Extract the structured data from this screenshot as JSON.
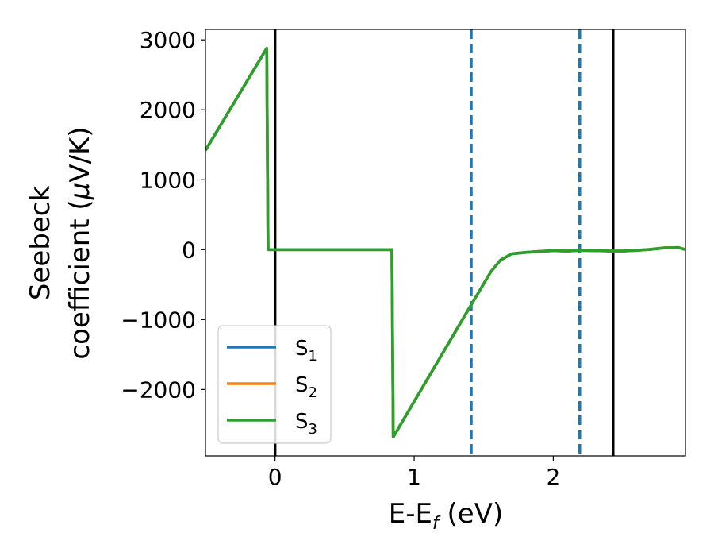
{
  "chart_data": {
    "type": "line",
    "xlabel": "E-E",
    "xlabel_sub": "f",
    "xlabel_unit": " (eV)",
    "ylabel_line1": "Seebeck",
    "ylabel_line2_text": "coefficient  (",
    "ylabel_mu": "μ",
    "ylabel_unit": "V/K)",
    "xlim": [
      -0.5,
      2.95
    ],
    "ylim": [
      -2950,
      3150
    ],
    "xticks": [
      0,
      1,
      2
    ],
    "xtick_labels": [
      "0",
      "1",
      "2"
    ],
    "yticks": [
      -2000,
      -1000,
      0,
      1000,
      2000,
      3000
    ],
    "ytick_labels": [
      "−2000",
      "−1000",
      "0",
      "1000",
      "2000",
      "3000"
    ],
    "grid": false,
    "legend_position": "lower-left",
    "vertical_lines": [
      {
        "x": 0.0,
        "style": "solid",
        "color": "#000000"
      },
      {
        "x": 2.43,
        "style": "solid",
        "color": "#000000"
      },
      {
        "x": 1.41,
        "style": "dashed",
        "color": "#1f77b4"
      },
      {
        "x": 2.19,
        "style": "dashed",
        "color": "#1f77b4"
      }
    ],
    "series": [
      {
        "name": "S",
        "sub": "1",
        "color": "#1f77b4",
        "x": [
          -0.5,
          -0.06,
          -0.05,
          0.84,
          0.85,
          1.41,
          1.55,
          1.62,
          1.7,
          1.8,
          1.9,
          2.0,
          2.1,
          2.19,
          2.3,
          2.43,
          2.5,
          2.6,
          2.7,
          2.8,
          2.9,
          2.95
        ],
        "y": [
          1420,
          2880,
          0,
          0,
          -2680,
          -790,
          -320,
          -150,
          -60,
          -40,
          -25,
          -15,
          -20,
          -10,
          -15,
          -20,
          -20,
          -10,
          5,
          25,
          30,
          0
        ]
      },
      {
        "name": "S",
        "sub": "2",
        "color": "#ff7f0e",
        "x": [
          -0.5,
          -0.06,
          -0.05,
          0.84,
          0.85,
          1.41,
          1.55,
          1.62,
          1.7,
          1.8,
          1.9,
          2.0,
          2.1,
          2.19,
          2.3,
          2.43,
          2.5,
          2.6,
          2.7,
          2.8,
          2.9,
          2.95
        ],
        "y": [
          1420,
          2880,
          0,
          0,
          -2680,
          -790,
          -320,
          -150,
          -60,
          -40,
          -25,
          -15,
          -20,
          -10,
          -15,
          -20,
          -20,
          -10,
          5,
          25,
          30,
          0
        ]
      },
      {
        "name": "S",
        "sub": "3",
        "color": "#2ca02c",
        "x": [
          -0.5,
          -0.06,
          -0.05,
          0.84,
          0.85,
          1.41,
          1.55,
          1.62,
          1.7,
          1.8,
          1.9,
          2.0,
          2.1,
          2.19,
          2.3,
          2.43,
          2.5,
          2.6,
          2.7,
          2.8,
          2.9,
          2.95
        ],
        "y": [
          1420,
          2880,
          0,
          0,
          -2680,
          -790,
          -320,
          -150,
          -60,
          -40,
          -25,
          -15,
          -20,
          -10,
          -15,
          -20,
          -20,
          -10,
          5,
          25,
          30,
          0
        ]
      }
    ]
  }
}
